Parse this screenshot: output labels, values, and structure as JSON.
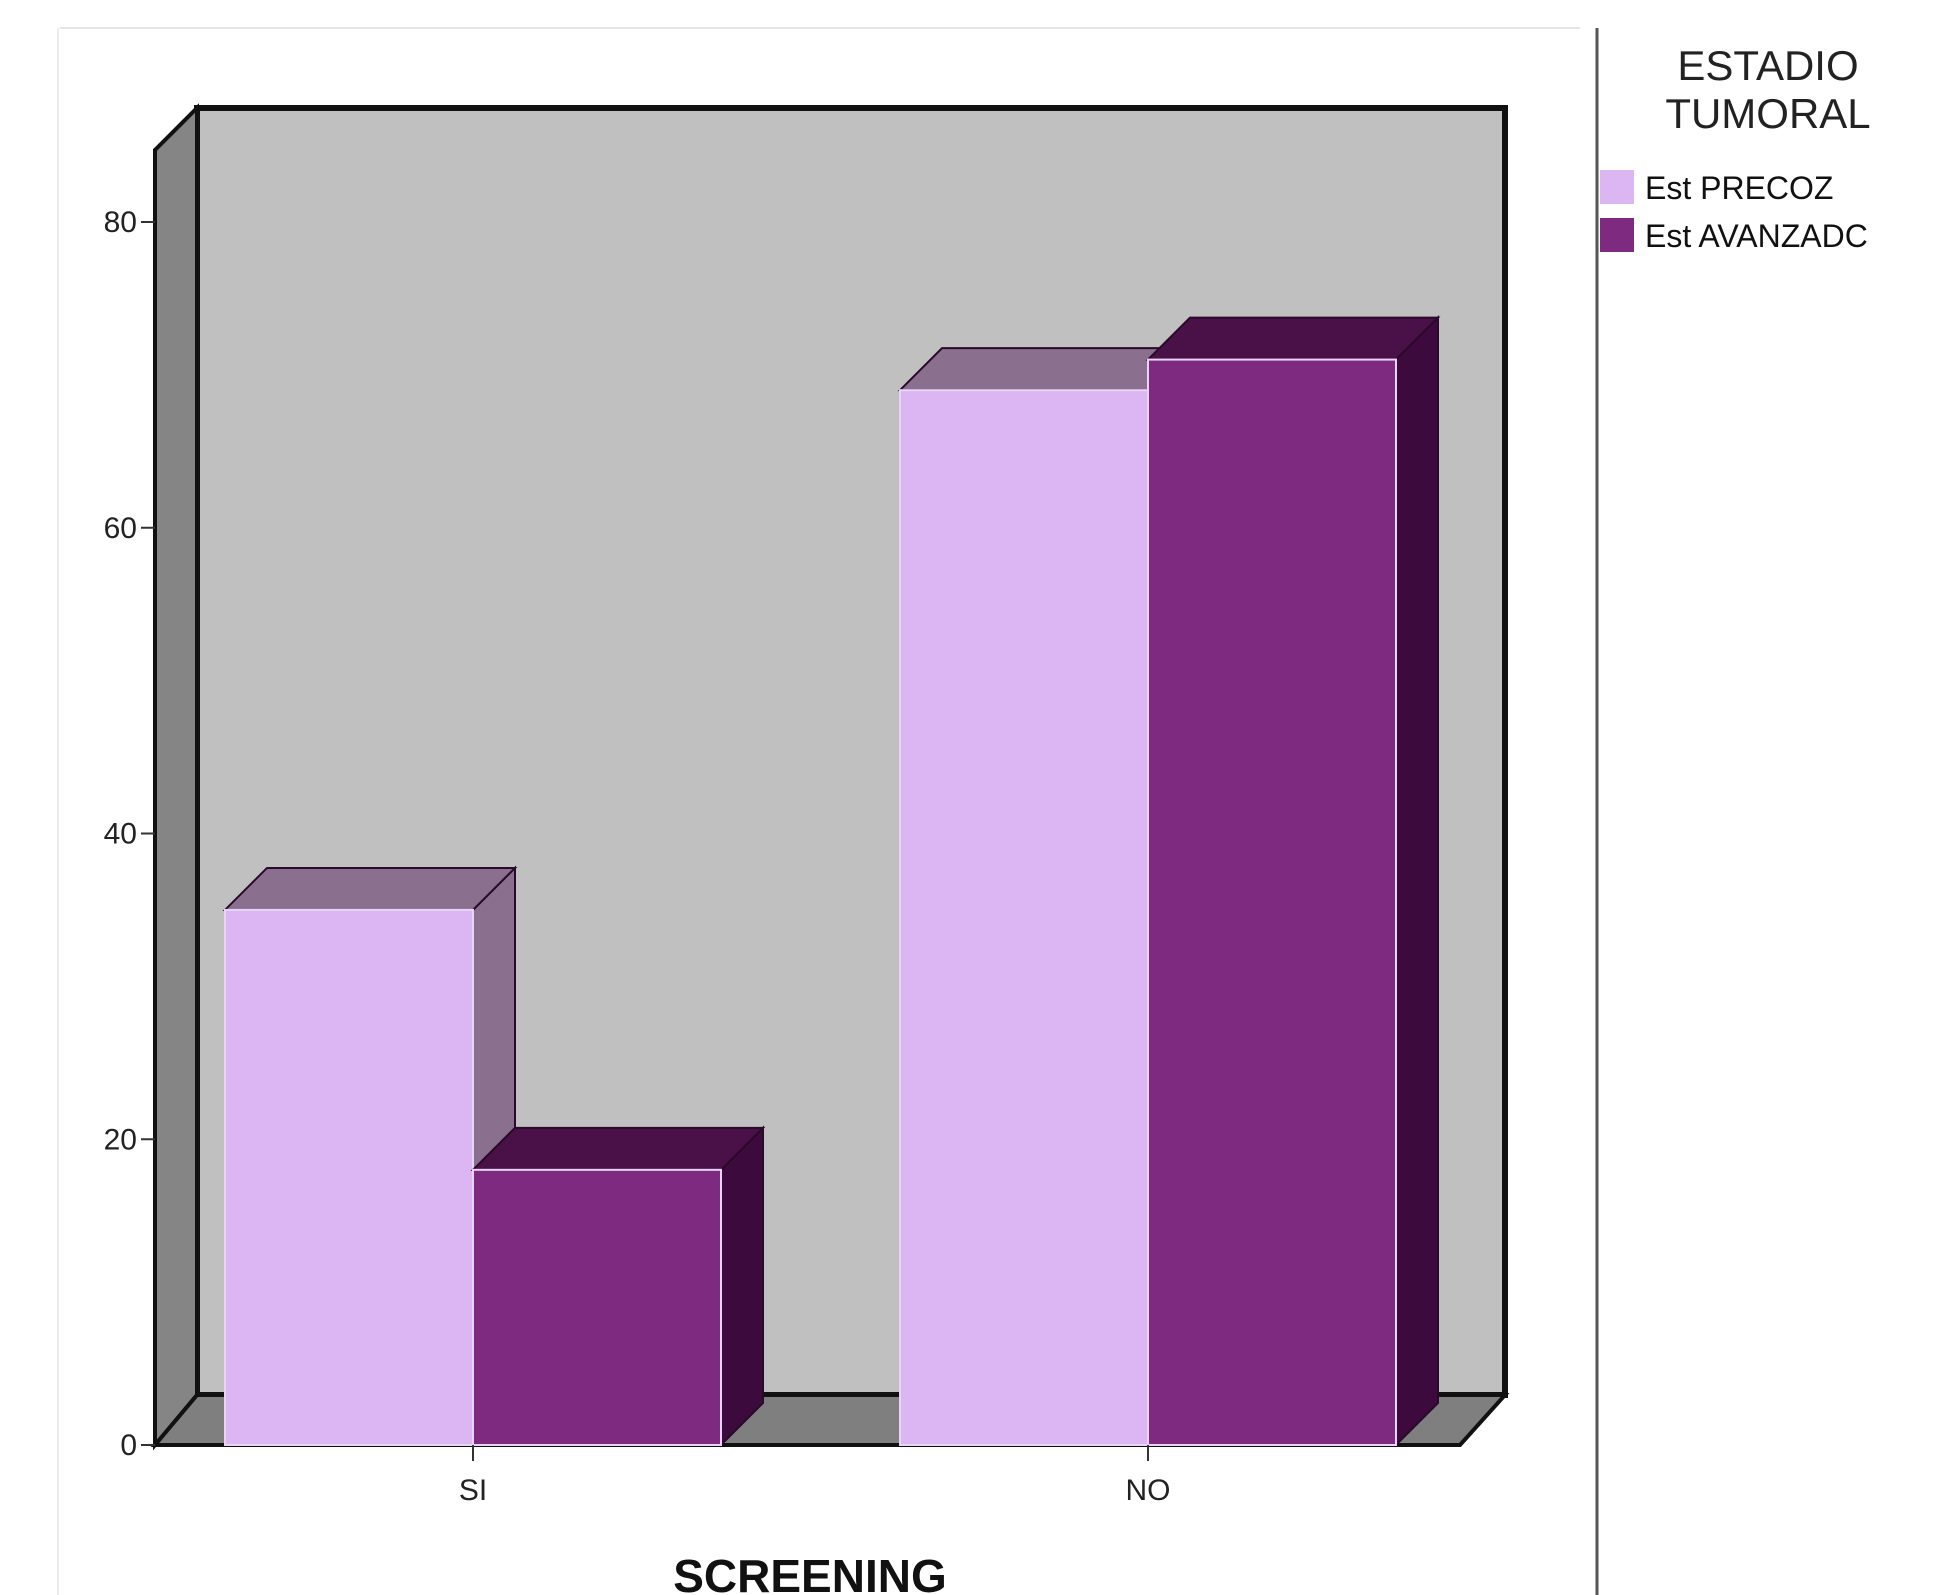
{
  "chart_data": {
    "type": "bar",
    "title": "",
    "xlabel": "SCREENING",
    "ylabel": "",
    "categories": [
      "SI",
      "NO"
    ],
    "series": [
      {
        "name": "Est PRECOZ",
        "values": [
          35,
          69
        ],
        "color": "#dcb6f2"
      },
      {
        "name": "Est AVANZADO",
        "values": [
          18,
          71
        ],
        "color": "#7d2a80"
      }
    ],
    "ylim": [
      0,
      80
    ],
    "yticks": [
      0,
      20,
      40,
      60,
      80
    ],
    "grid": false,
    "legend": {
      "title_lines": [
        "ESTADIO",
        "TUMORAL"
      ],
      "placement": "right",
      "labels": [
        "Est PRECOZ",
        "Est AVANZADC"
      ]
    },
    "style": "3d-clustered",
    "colors": {
      "wall": "#c0c0c0",
      "side_wall": "#858585",
      "floor": "#7f7f7f",
      "series_1_top": "#8a6f8f",
      "series_1_side": "#8a6f8f",
      "series_2_top": "#4a1048",
      "series_2_side": "#3d0a3d"
    }
  }
}
